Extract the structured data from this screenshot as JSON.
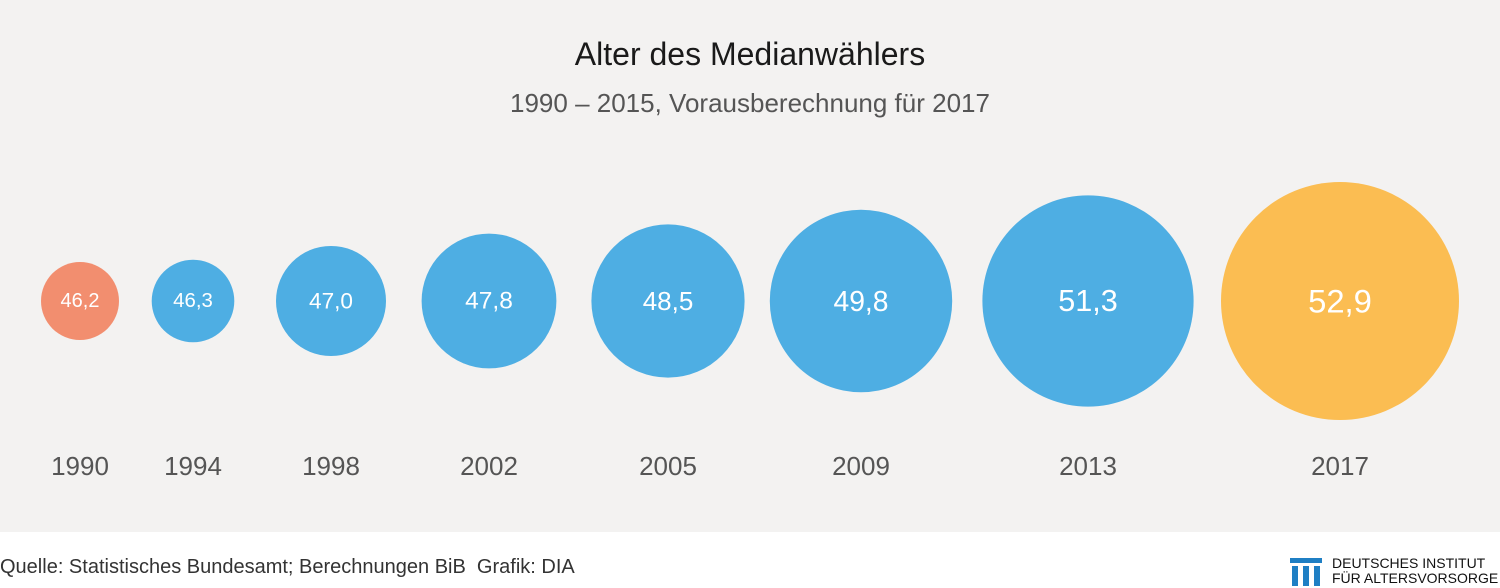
{
  "chart_data": {
    "type": "bubble",
    "title": "Alter des Medianwählers",
    "subtitle": "1990 – 2015, Vorausberechnung für 2017",
    "categories": [
      "1990",
      "1994",
      "1998",
      "2002",
      "2005",
      "2009",
      "2013",
      "2017"
    ],
    "values": [
      46.2,
      46.3,
      47.0,
      47.8,
      48.5,
      49.8,
      51.3,
      52.9
    ],
    "value_labels": [
      "46,2",
      "46,3",
      "47,0",
      "47,8",
      "48,5",
      "49,8",
      "51,3",
      "52,9"
    ],
    "colors": [
      "#f28e6f",
      "#4eaee3",
      "#4eaee3",
      "#4eaee3",
      "#4eaee3",
      "#4eaee3",
      "#4eaee3",
      "#fbbd52"
    ],
    "background": "#f3f2f1"
  },
  "footer": {
    "source": "Quelle: Statistisches Bundesamt; Berechnungen BiB  Grafik: DIA",
    "logo_line1": "DEUTSCHES INSTITUT",
    "logo_line2": "FÜR ALTERSVORSORGE",
    "logo_color": "#1f7fc4"
  }
}
